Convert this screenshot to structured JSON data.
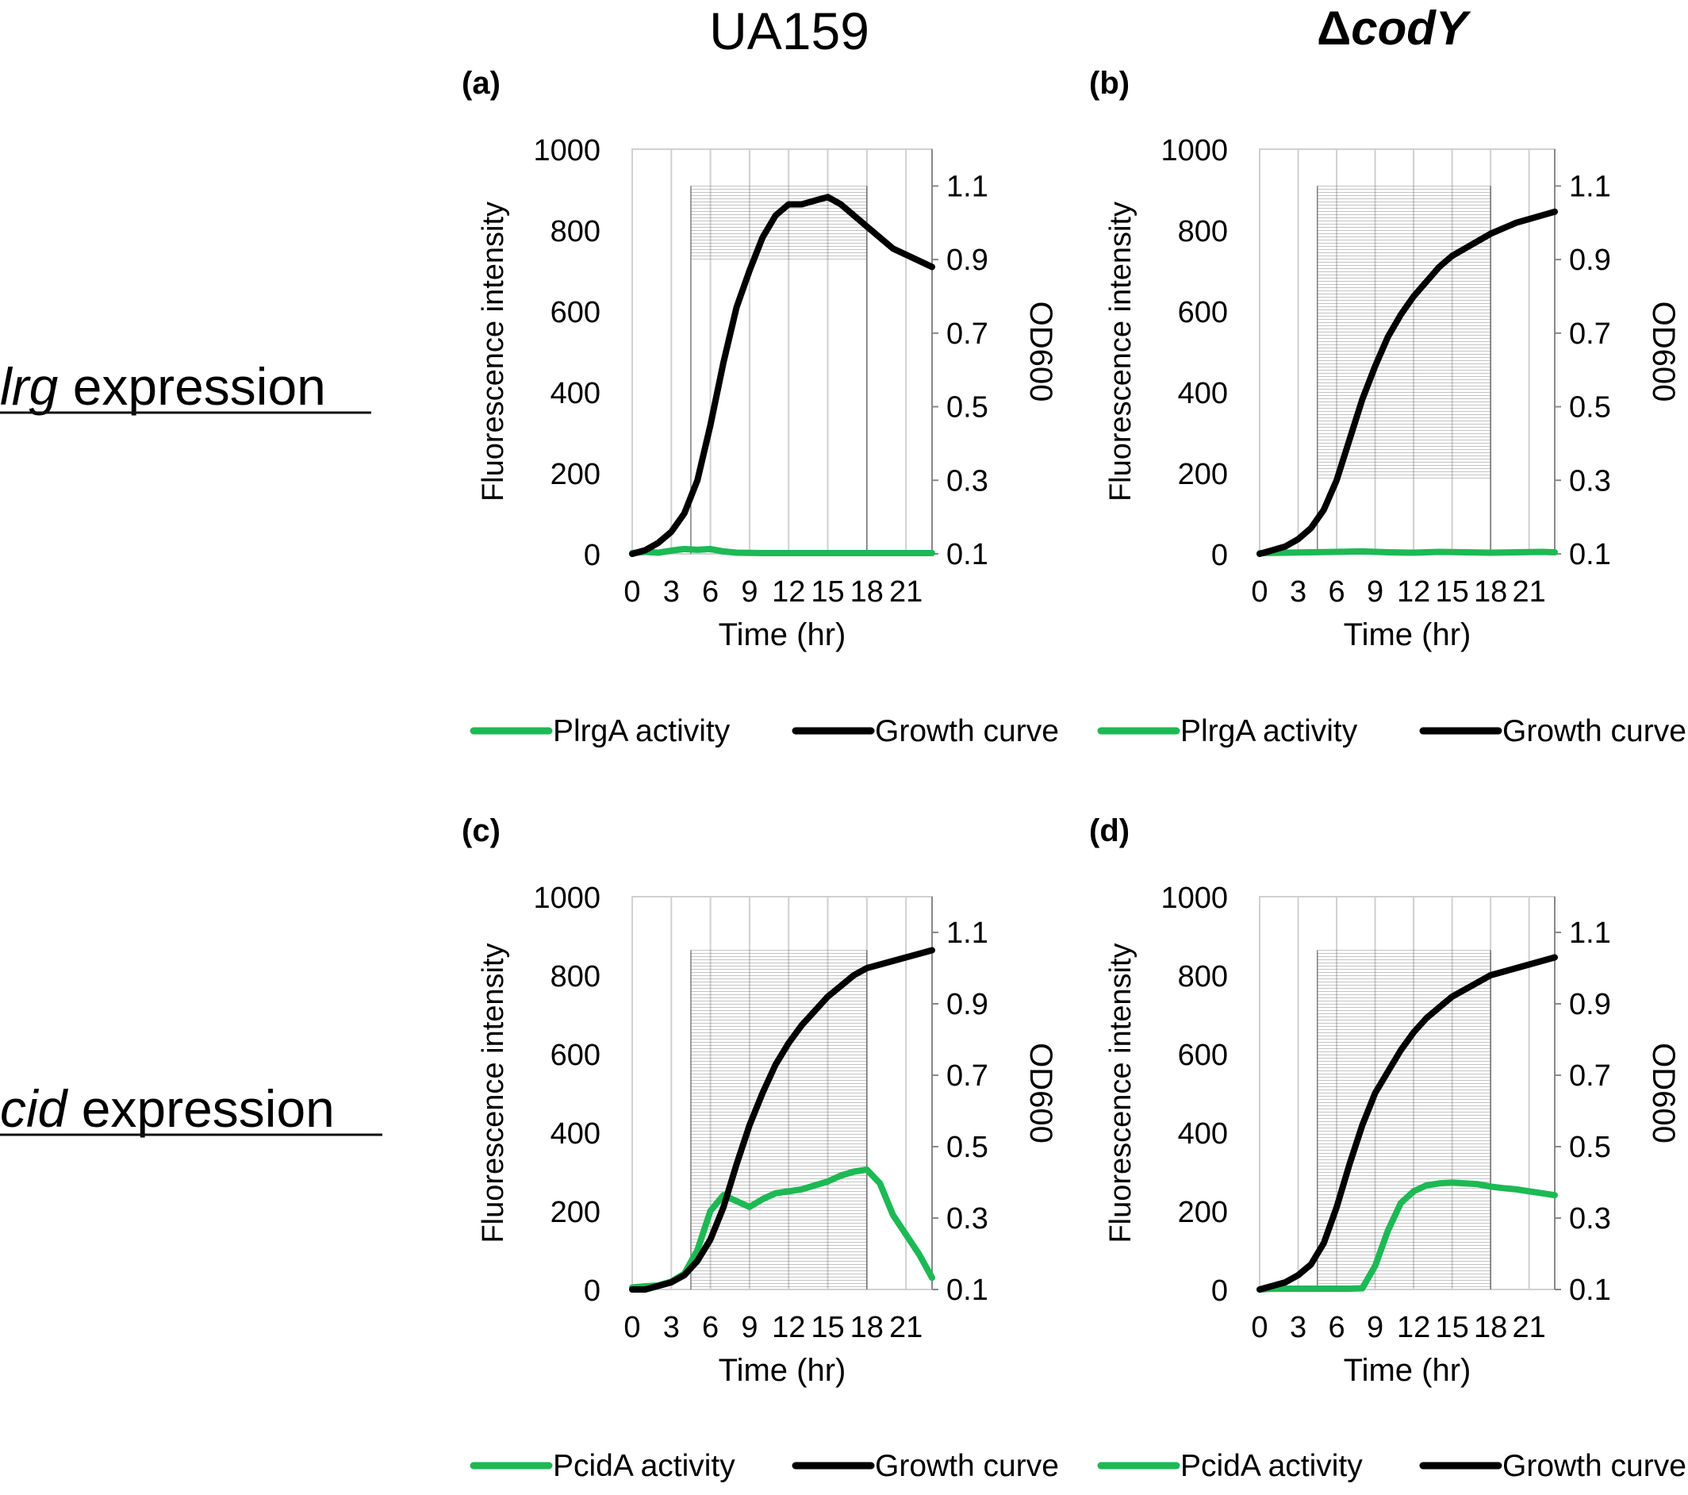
{
  "columns": {
    "left": "UA159",
    "right_symbol": "Δ",
    "right_gene": "codY"
  },
  "rows": [
    {
      "gene": "lrg",
      "suffix": " expression"
    },
    {
      "gene": "cid",
      "suffix": " expression"
    }
  ],
  "colors": {
    "activity": "#1db954",
    "growth": "#000000",
    "grid": "#d0d0d0",
    "band": "#606060"
  },
  "axis_text": {
    "xlabel": "Time (hr)",
    "ylabel_left": "Fluorescence intensity",
    "ylabel_right": "OD600",
    "x_ticks": [
      "0",
      "3",
      "6",
      "9",
      "12",
      "15",
      "18",
      "21"
    ],
    "y_left_ticks": [
      "0",
      "200",
      "400",
      "600",
      "800",
      "1000"
    ],
    "y_right_ticks": [
      "0.1",
      "0.3",
      "0.5",
      "0.7",
      "0.9",
      "1.1"
    ]
  },
  "chart_data": [
    {
      "panel": "(a)",
      "type": "line",
      "xlim": [
        0,
        23
      ],
      "ylim_left": [
        0,
        1000
      ],
      "ylim_right": [
        0.1,
        1.2
      ],
      "shaded_band": {
        "x": [
          4.5,
          18
        ],
        "y_right": [
          0.9,
          1.1
        ]
      },
      "series": [
        {
          "name": "PlrgA activity",
          "axis": "left",
          "color_key": "activity",
          "x": [
            0,
            1,
            2,
            3,
            4,
            5,
            6,
            7,
            8,
            10,
            12,
            14,
            16,
            18,
            20,
            23
          ],
          "y": [
            2,
            5,
            3,
            8,
            12,
            10,
            12,
            6,
            3,
            2,
            2,
            2,
            2,
            2,
            2,
            2
          ]
        },
        {
          "name": "Growth curve",
          "axis": "right",
          "color_key": "growth",
          "x": [
            0,
            1,
            2,
            3,
            4,
            5,
            6,
            7,
            8,
            9,
            10,
            11,
            12,
            13,
            14,
            15,
            16,
            18,
            20,
            23
          ],
          "y": [
            0.1,
            0.11,
            0.13,
            0.16,
            0.21,
            0.3,
            0.45,
            0.62,
            0.77,
            0.87,
            0.96,
            1.02,
            1.05,
            1.05,
            1.06,
            1.07,
            1.05,
            0.99,
            0.93,
            0.88
          ]
        }
      ]
    },
    {
      "panel": "(b)",
      "type": "line",
      "xlim": [
        0,
        23
      ],
      "ylim_left": [
        0,
        1000
      ],
      "ylim_right": [
        0.1,
        1.2
      ],
      "shaded_band": {
        "x": [
          4.5,
          18
        ],
        "y_right": [
          0.3,
          1.1
        ]
      },
      "series": [
        {
          "name": "PlrgA activity",
          "axis": "left",
          "color_key": "activity",
          "x": [
            0,
            2,
            4,
            6,
            8,
            10,
            12,
            14,
            16,
            18,
            20,
            22,
            23
          ],
          "y": [
            2,
            3,
            4,
            5,
            6,
            4,
            3,
            5,
            4,
            3,
            4,
            5,
            4
          ]
        },
        {
          "name": "Growth curve",
          "axis": "right",
          "color_key": "growth",
          "x": [
            0,
            1,
            2,
            3,
            4,
            5,
            6,
            7,
            8,
            9,
            10,
            11,
            12,
            13,
            14,
            15,
            16,
            17,
            18,
            20,
            23
          ],
          "y": [
            0.1,
            0.11,
            0.12,
            0.14,
            0.17,
            0.22,
            0.3,
            0.41,
            0.52,
            0.61,
            0.69,
            0.75,
            0.8,
            0.84,
            0.88,
            0.91,
            0.93,
            0.95,
            0.97,
            1.0,
            1.03
          ]
        }
      ]
    },
    {
      "panel": "(c)",
      "type": "line",
      "xlim": [
        0,
        23
      ],
      "ylim_left": [
        0,
        1000
      ],
      "ylim_right": [
        0.1,
        1.2
      ],
      "shaded_band": {
        "x": [
          4.5,
          18
        ],
        "y_right": [
          0.1,
          1.05
        ]
      },
      "series": [
        {
          "name": "PcidA activity",
          "axis": "left",
          "color_key": "activity",
          "x": [
            0,
            1,
            2,
            3,
            4,
            5,
            6,
            7,
            8,
            9,
            10,
            11,
            12,
            13,
            14,
            15,
            16,
            17,
            18,
            19,
            20,
            21,
            22,
            23
          ],
          "y": [
            5,
            8,
            10,
            20,
            40,
            100,
            200,
            240,
            225,
            210,
            230,
            245,
            250,
            255,
            265,
            275,
            290,
            300,
            305,
            270,
            190,
            140,
            90,
            30
          ]
        },
        {
          "name": "Growth curve",
          "axis": "right",
          "color_key": "growth",
          "x": [
            0,
            1,
            2,
            3,
            4,
            5,
            6,
            7,
            8,
            9,
            10,
            11,
            12,
            13,
            14,
            15,
            16,
            17,
            18,
            19,
            20,
            21,
            22,
            23
          ],
          "y": [
            0.1,
            0.1,
            0.11,
            0.12,
            0.14,
            0.18,
            0.24,
            0.33,
            0.45,
            0.56,
            0.65,
            0.73,
            0.79,
            0.84,
            0.88,
            0.92,
            0.95,
            0.98,
            1.0,
            1.01,
            1.02,
            1.03,
            1.04,
            1.05
          ]
        }
      ]
    },
    {
      "panel": "(d)",
      "type": "line",
      "xlim": [
        0,
        23
      ],
      "ylim_left": [
        0,
        1000
      ],
      "ylim_right": [
        0.1,
        1.2
      ],
      "shaded_band": {
        "x": [
          4.5,
          18
        ],
        "y_right": [
          0.1,
          1.05
        ]
      },
      "series": [
        {
          "name": "PcidA activity",
          "axis": "left",
          "color_key": "activity",
          "x": [
            0,
            1,
            2,
            3,
            4,
            5,
            6,
            7,
            8,
            9,
            10,
            11,
            12,
            13,
            14,
            15,
            16,
            17,
            18,
            19,
            20,
            21,
            22,
            23
          ],
          "y": [
            0,
            2,
            2,
            2,
            2,
            2,
            2,
            2,
            3,
            60,
            150,
            220,
            250,
            265,
            270,
            272,
            270,
            268,
            262,
            258,
            255,
            250,
            245,
            240
          ]
        },
        {
          "name": "Growth curve",
          "axis": "right",
          "color_key": "growth",
          "x": [
            0,
            1,
            2,
            3,
            4,
            5,
            6,
            7,
            8,
            9,
            10,
            11,
            12,
            13,
            14,
            15,
            16,
            17,
            18,
            19,
            20,
            21,
            22,
            23
          ],
          "y": [
            0.1,
            0.11,
            0.12,
            0.14,
            0.17,
            0.23,
            0.33,
            0.45,
            0.56,
            0.65,
            0.71,
            0.77,
            0.82,
            0.86,
            0.89,
            0.92,
            0.94,
            0.96,
            0.98,
            0.99,
            1.0,
            1.01,
            1.02,
            1.03
          ]
        }
      ]
    }
  ]
}
